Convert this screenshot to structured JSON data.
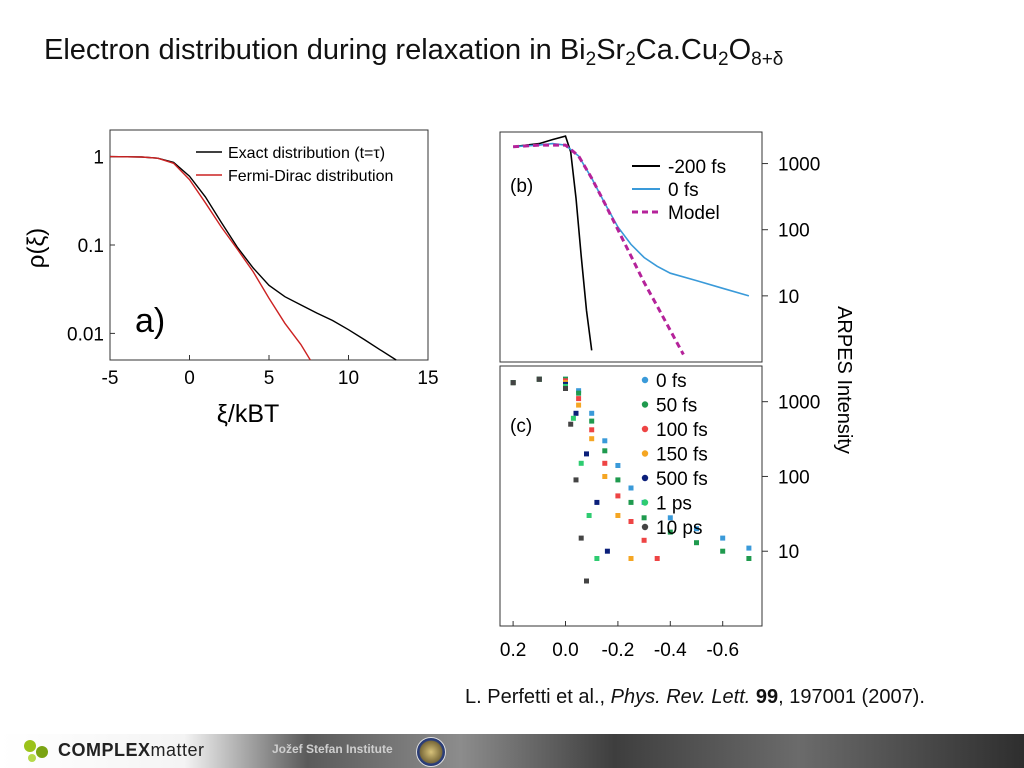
{
  "slide": {
    "title_main": "Electron distribution during relaxation in Bi",
    "title_parts": [
      "2",
      "Sr",
      "2",
      "Ca.Cu",
      "2",
      "O",
      "8+δ"
    ],
    "citation": {
      "authors": "L. Perfetti et al., ",
      "journal": "Phys. Rev. Lett.",
      "volume": "99",
      "rest": ", 197001 (2007)."
    },
    "footer": {
      "logo_bold": "COMPLEX",
      "logo_light": "matter",
      "institute": "Jožef Stefan Institute",
      "logo_icon": "complexmatter-logo-icon",
      "seal_icon": "university-seal-icon"
    }
  },
  "chart_data": [
    {
      "type": "line",
      "panel_label": "a)",
      "xlabel": "ξ/kBT",
      "ylabel": "ρ(ξ)",
      "xlim": [
        -5,
        15
      ],
      "ylim_log": [
        0.005,
        2.0
      ],
      "y_scale": "log",
      "x_ticks": [
        "-5",
        "0",
        "5",
        "10",
        "15"
      ],
      "y_ticks": [
        "1",
        "0.1",
        "0.01"
      ],
      "legend_position": "top-right",
      "series": [
        {
          "name": "Exact distribution (t=τ)",
          "color": "#000000",
          "x": [
            -5,
            -3,
            -2,
            -1,
            0,
            1,
            2,
            3,
            4,
            5,
            6,
            7,
            8,
            9,
            10,
            11,
            12,
            13
          ],
          "y": [
            1.0,
            0.99,
            0.96,
            0.86,
            0.6,
            0.35,
            0.18,
            0.095,
            0.055,
            0.035,
            0.026,
            0.021,
            0.017,
            0.014,
            0.011,
            0.0085,
            0.0065,
            0.005
          ]
        },
        {
          "name": "Fermi-Dirac distribution",
          "color": "#cc2222",
          "x": [
            -5,
            -3,
            -2,
            -1,
            0,
            1,
            2,
            3,
            4,
            5,
            6,
            7,
            7.6
          ],
          "y": [
            1.0,
            0.99,
            0.96,
            0.84,
            0.55,
            0.3,
            0.16,
            0.09,
            0.05,
            0.025,
            0.013,
            0.0075,
            0.005
          ]
        }
      ]
    },
    {
      "type": "line",
      "panel_label": "(b)",
      "xlim": [
        0.25,
        -0.75
      ],
      "y_scale": "log",
      "y_ticks_right": [
        "1000",
        "100",
        "10"
      ],
      "legend_position": "top-right",
      "series": [
        {
          "name": "-200 fs",
          "color": "#000000",
          "x": [
            0.2,
            0.1,
            0.05,
            0.0,
            -0.02,
            -0.04,
            -0.06,
            -0.08,
            -0.1
          ],
          "y": [
            1800,
            2000,
            2300,
            2600,
            1500,
            300,
            40,
            6,
            1.5
          ]
        },
        {
          "name": "0 fs",
          "color": "#3a9ad9",
          "x": [
            0.2,
            0.1,
            0.05,
            0.0,
            -0.05,
            -0.1,
            -0.15,
            -0.2,
            -0.25,
            -0.3,
            -0.35,
            -0.4,
            -0.5,
            -0.6,
            -0.7
          ],
          "y": [
            1800,
            1900,
            2000,
            1900,
            1300,
            600,
            250,
            110,
            60,
            38,
            28,
            22,
            17,
            13,
            10
          ]
        },
        {
          "name": "Model",
          "color": "#b5229a",
          "x": [
            0.2,
            0.1,
            0.0,
            -0.05,
            -0.1,
            -0.15,
            -0.2,
            -0.25,
            -0.3,
            -0.35,
            -0.4,
            -0.45
          ],
          "y": [
            1800,
            1900,
            1900,
            1300,
            600,
            250,
            100,
            40,
            16,
            7,
            3,
            1.3
          ]
        }
      ]
    },
    {
      "type": "scatter",
      "panel_label": "(c)",
      "xlim": [
        0.25,
        -0.75
      ],
      "y_scale": "log",
      "x_ticks": [
        "0.2",
        "0.0",
        "-0.2",
        "-0.4",
        "-0.6"
      ],
      "y_ticks_right": [
        "1000",
        "100",
        "10"
      ],
      "ylabel_right": "ARPES Intensity",
      "legend_position": "top-right",
      "series": [
        {
          "name": "0 fs",
          "color": "#3a9ad9",
          "x": [
            0.2,
            0.1,
            0.0,
            -0.05,
            -0.1,
            -0.15,
            -0.2,
            -0.25,
            -0.3,
            -0.4,
            -0.5,
            -0.6,
            -0.7
          ],
          "y": [
            1800,
            2000,
            2000,
            1400,
            700,
            300,
            140,
            70,
            45,
            28,
            20,
            15,
            11
          ]
        },
        {
          "name": "50 fs",
          "color": "#1f9a4e",
          "x": [
            0.2,
            0.1,
            0.0,
            -0.05,
            -0.1,
            -0.15,
            -0.2,
            -0.25,
            -0.3,
            -0.4,
            -0.5,
            -0.6,
            -0.7
          ],
          "y": [
            1800,
            2000,
            2000,
            1300,
            550,
            220,
            90,
            45,
            28,
            18,
            13,
            10,
            8
          ]
        },
        {
          "name": "100 fs",
          "color": "#ee4444",
          "x": [
            0.2,
            0.1,
            0.0,
            -0.05,
            -0.1,
            -0.15,
            -0.2,
            -0.25,
            -0.3,
            -0.35
          ],
          "y": [
            1800,
            2000,
            1900,
            1100,
            420,
            150,
            55,
            25,
            14,
            8
          ]
        },
        {
          "name": "150 fs",
          "color": "#f5a623",
          "x": [
            0.2,
            0.1,
            0.0,
            -0.05,
            -0.1,
            -0.15,
            -0.2,
            -0.25
          ],
          "y": [
            1800,
            2000,
            1800,
            900,
            320,
            100,
            30,
            8
          ]
        },
        {
          "name": "500 fs",
          "color": "#0b1f7a",
          "x": [
            0.2,
            0.1,
            0.0,
            -0.04,
            -0.08,
            -0.12,
            -0.16
          ],
          "y": [
            1800,
            2000,
            1700,
            700,
            200,
            45,
            10
          ]
        },
        {
          "name": "1 ps",
          "color": "#2ecc71",
          "x": [
            0.2,
            0.1,
            0.0,
            -0.03,
            -0.06,
            -0.09,
            -0.12
          ],
          "y": [
            1800,
            2000,
            1600,
            600,
            150,
            30,
            8
          ]
        },
        {
          "name": "10 ps",
          "color": "#444444",
          "x": [
            0.2,
            0.1,
            0.0,
            -0.02,
            -0.04,
            -0.06,
            -0.08
          ],
          "y": [
            1800,
            2000,
            1500,
            500,
            90,
            15,
            4
          ]
        }
      ]
    }
  ]
}
